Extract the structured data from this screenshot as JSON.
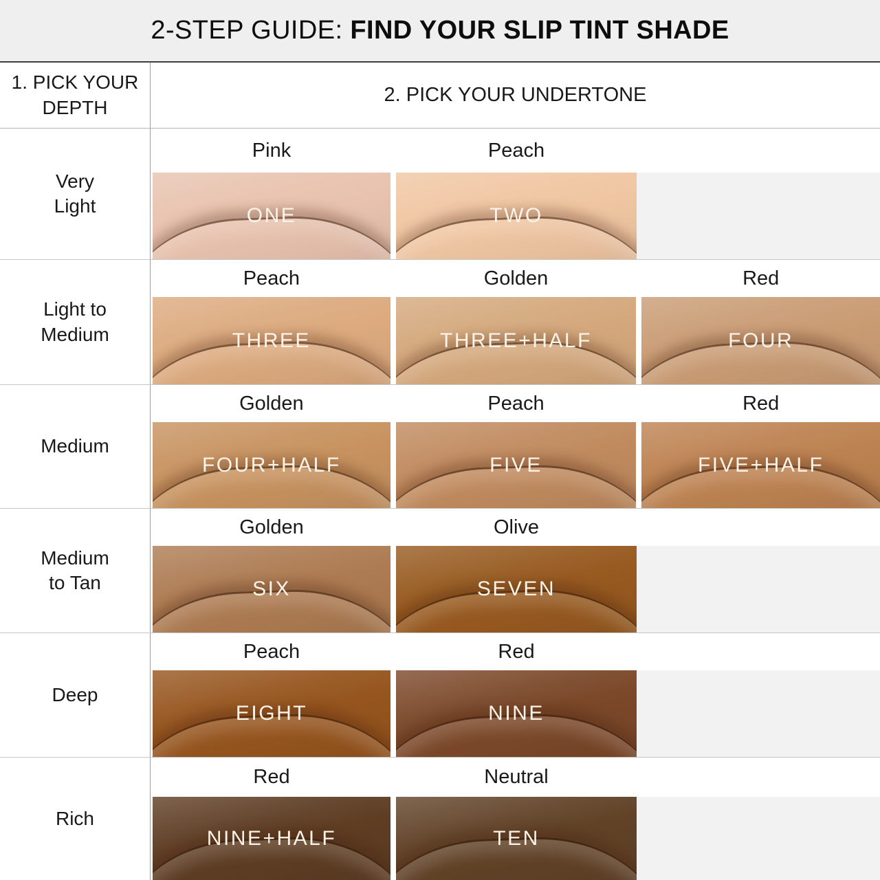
{
  "title": {
    "prefix": "2-STEP GUIDE: ",
    "emphasis": "FIND YOUR SLIP TINT SHADE"
  },
  "header": {
    "depth": "1. PICK YOUR\nDEPTH",
    "undertone": "2. PICK YOUR UNDERTONE"
  },
  "colors": {
    "title_bar_bg": "#efefef",
    "empty_cell_bg": "#f2f2f2",
    "divider_dark": "#3d3d3d",
    "divider_light": "#c6c6c6",
    "column_divider": "#9c9c9c",
    "label_text": "#191919",
    "shade_name_text": "#fcf3e9"
  },
  "rows": [
    {
      "depth": "Very\nLight",
      "cells": [
        {
          "undertone": "Pink",
          "shade": "ONE",
          "color": "#e8c2ae"
        },
        {
          "undertone": "Peach",
          "shade": "TWO",
          "color": "#f0c6a2"
        }
      ]
    },
    {
      "depth": "Light to\nMedium",
      "cells": [
        {
          "undertone": "Peach",
          "shade": "THREE",
          "color": "#dcaa7e"
        },
        {
          "undertone": "Golden",
          "shade": "THREE+HALF",
          "color": "#d4a87c"
        },
        {
          "undertone": "Red",
          "shade": "FOUR",
          "color": "#c99c74"
        }
      ]
    },
    {
      "depth": "Medium",
      "cells": [
        {
          "undertone": "Golden",
          "shade": "FOUR+HALF",
          "color": "#c7925f"
        },
        {
          "undertone": "Peach",
          "shade": "FIVE",
          "color": "#c08a5e"
        },
        {
          "undertone": "Red",
          "shade": "FIVE+HALF",
          "color": "#bd8251"
        }
      ]
    },
    {
      "depth": "Medium\nto Tan",
      "cells": [
        {
          "undertone": "Golden",
          "shade": "SIX",
          "color": "#ad7b52"
        },
        {
          "undertone": "Olive",
          "shade": "SEVEN",
          "color": "#975a20"
        }
      ]
    },
    {
      "depth": "Deep",
      "cells": [
        {
          "undertone": "Peach",
          "shade": "EIGHT",
          "color": "#96551e"
        },
        {
          "undertone": "Red",
          "shade": "NINE",
          "color": "#7b4829"
        }
      ]
    },
    {
      "depth": "Rich",
      "cells": [
        {
          "undertone": "Red",
          "shade": "NINE+HALF",
          "color": "#5e3d23"
        },
        {
          "undertone": "Neutral",
          "shade": "TEN",
          "color": "#614227"
        }
      ]
    }
  ]
}
